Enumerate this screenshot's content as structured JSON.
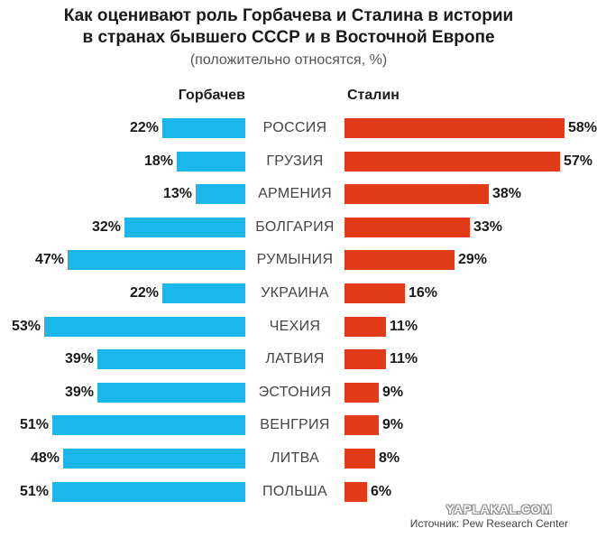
{
  "chart_data": {
    "type": "bar",
    "orientation": "horizontal-diverging",
    "title_lines": [
      "Как оценивают роль Горбачева и Сталина в истории",
      "в странах бывшего СССР и в Восточной Европе"
    ],
    "subtitle": "(положительно относятся, %)",
    "value_suffix": "%",
    "categories": [
      "РОССИЯ",
      "ГРУЗИЯ",
      "АРМЕНИЯ",
      "БОЛГАРИЯ",
      "РУМЫНИЯ",
      "УКРАИНА",
      "ЧЕХИЯ",
      "ЛАТВИЯ",
      "ЭСТОНИЯ",
      "ВЕНГРИЯ",
      "ЛИТВА",
      "ПОЛЬША"
    ],
    "series": [
      {
        "name": "Горбачев",
        "side": "left",
        "color": "#1bb7ea",
        "values": [
          22,
          18,
          13,
          32,
          47,
          22,
          53,
          39,
          39,
          51,
          48,
          51
        ]
      },
      {
        "name": "Сталин",
        "side": "right",
        "color": "#e23b18",
        "values": [
          58,
          57,
          38,
          33,
          29,
          16,
          11,
          11,
          9,
          9,
          8,
          6
        ]
      }
    ],
    "grid": false,
    "legend": "top"
  },
  "watermark": "YAPLAKAL.COM",
  "source": "Источник: Pew Research Center"
}
